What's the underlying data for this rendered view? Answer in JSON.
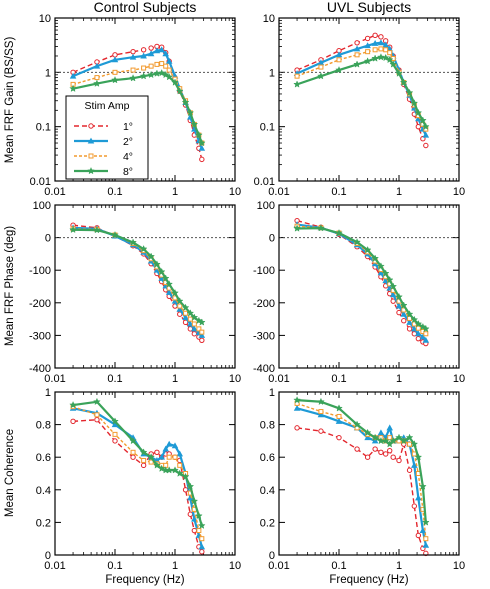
{
  "colors": {
    "1": "#e3262d",
    "2": "#1e9ad6",
    "4": "#f29a2e",
    "8": "#3aa35a",
    "reference": "#555555",
    "axis": "#000000"
  },
  "legend": {
    "title": "Stim Amp",
    "entries": [
      {
        "key": "1",
        "label": "1°"
      },
      {
        "key": "2",
        "label": "2°"
      },
      {
        "key": "4",
        "label": "4°"
      },
      {
        "key": "8",
        "label": "8°"
      }
    ]
  },
  "columns": [
    {
      "title": "Control Subjects"
    },
    {
      "title": "UVL Subjects"
    }
  ],
  "rows": [
    {
      "ylabel": "Mean FRF Gain (BS/SS)",
      "scale": "log",
      "ylim": [
        0.01,
        10
      ],
      "yticks": [
        "0.01",
        "0.1",
        "1",
        "10"
      ],
      "refline": 1
    },
    {
      "ylabel": "Mean FRF Phase (deg)",
      "scale": "linear",
      "ylim": [
        -400,
        100
      ],
      "yticks": [
        "-400",
        "-300",
        "-200",
        "-100",
        "0",
        "100"
      ],
      "refline": 0
    },
    {
      "ylabel": "Mean Coherence",
      "scale": "linear",
      "ylim": [
        0,
        1
      ],
      "yticks": [
        "0",
        "0.2",
        "0.4",
        "0.6",
        "0.8",
        "1"
      ],
      "refline": null
    }
  ],
  "xaxis": {
    "label": "Frequency (Hz)",
    "scale": "log",
    "xlim": [
      0.01,
      10
    ],
    "ticks": [
      "0.01",
      "0.1",
      "1",
      "10"
    ]
  },
  "chart_data": [
    {
      "type": "line",
      "panel": "control-gain",
      "title": "Control Subjects",
      "ylabel": "Mean FRF Gain (BS/SS)",
      "x": [
        0.02,
        0.05,
        0.1,
        0.2,
        0.3,
        0.4,
        0.5,
        0.6,
        0.7,
        0.8,
        1.0,
        1.2,
        1.5,
        1.8,
        2.1,
        2.5,
        2.8
      ],
      "series": [
        {
          "name": "1°",
          "key": "1",
          "values": [
            1.0,
            1.55,
            2.1,
            2.4,
            2.6,
            2.8,
            3.0,
            2.9,
            2.3,
            1.6,
            0.8,
            0.45,
            0.25,
            0.13,
            0.07,
            0.04,
            0.025
          ]
        },
        {
          "name": "2°",
          "key": "2",
          "values": [
            0.85,
            1.3,
            1.7,
            1.9,
            2.0,
            2.2,
            2.5,
            2.6,
            2.2,
            1.6,
            0.85,
            0.5,
            0.28,
            0.15,
            0.09,
            0.055,
            0.04
          ]
        },
        {
          "name": "4°",
          "key": "4",
          "values": [
            0.6,
            0.8,
            1.0,
            1.1,
            1.2,
            1.3,
            1.4,
            1.45,
            1.3,
            1.1,
            0.75,
            0.5,
            0.3,
            0.18,
            0.11,
            0.07,
            0.05
          ]
        },
        {
          "name": "8°",
          "key": "8",
          "values": [
            0.5,
            0.62,
            0.72,
            0.78,
            0.85,
            0.9,
            0.95,
            0.97,
            0.9,
            0.82,
            0.65,
            0.45,
            0.28,
            0.18,
            0.11,
            0.07,
            0.05
          ]
        }
      ]
    },
    {
      "type": "line",
      "panel": "uvl-gain",
      "title": "UVL Subjects",
      "x": [
        0.02,
        0.05,
        0.1,
        0.2,
        0.3,
        0.4,
        0.5,
        0.6,
        0.7,
        0.8,
        1.0,
        1.2,
        1.5,
        1.8,
        2.1,
        2.5,
        2.8
      ],
      "series": [
        {
          "name": "1°",
          "key": "1",
          "values": [
            1.1,
            1.7,
            2.5,
            3.5,
            4.2,
            4.8,
            4.5,
            3.8,
            2.9,
            2.0,
            1.1,
            0.6,
            0.32,
            0.17,
            0.1,
            0.06,
            0.045
          ]
        },
        {
          "name": "2°",
          "key": "2",
          "values": [
            0.95,
            1.5,
            2.1,
            2.7,
            3.1,
            3.4,
            3.5,
            3.2,
            2.7,
            2.0,
            1.1,
            0.65,
            0.38,
            0.22,
            0.14,
            0.09,
            0.07
          ]
        },
        {
          "name": "4°",
          "key": "4",
          "values": [
            0.85,
            1.25,
            1.7,
            2.1,
            2.4,
            2.6,
            2.7,
            2.6,
            2.3,
            1.8,
            1.0,
            0.65,
            0.4,
            0.25,
            0.16,
            0.11,
            0.09
          ]
        },
        {
          "name": "8°",
          "key": "8",
          "values": [
            0.6,
            0.85,
            1.1,
            1.4,
            1.6,
            1.8,
            1.9,
            1.85,
            1.7,
            1.4,
            0.95,
            0.65,
            0.42,
            0.27,
            0.18,
            0.13,
            0.1
          ]
        }
      ]
    },
    {
      "type": "line",
      "panel": "control-phase",
      "ylabel": "Mean FRF Phase (deg)",
      "x": [
        0.02,
        0.05,
        0.1,
        0.2,
        0.3,
        0.4,
        0.5,
        0.6,
        0.7,
        0.8,
        1.0,
        1.2,
        1.5,
        1.8,
        2.1,
        2.5,
        2.8
      ],
      "series": [
        {
          "name": "1°",
          "key": "1",
          "values": [
            38,
            30,
            5,
            -25,
            -50,
            -80,
            -110,
            -135,
            -160,
            -180,
            -210,
            -235,
            -260,
            -280,
            -295,
            -305,
            -315
          ]
        },
        {
          "name": "2°",
          "key": "2",
          "values": [
            30,
            27,
            5,
            -22,
            -45,
            -72,
            -100,
            -125,
            -148,
            -168,
            -195,
            -220,
            -245,
            -265,
            -280,
            -292,
            -300
          ]
        },
        {
          "name": "4°",
          "key": "4",
          "values": [
            27,
            25,
            8,
            -18,
            -40,
            -65,
            -90,
            -115,
            -138,
            -155,
            -185,
            -210,
            -232,
            -250,
            -265,
            -280,
            -290
          ]
        },
        {
          "name": "8°",
          "key": "8",
          "values": [
            24,
            23,
            8,
            -15,
            -35,
            -58,
            -82,
            -105,
            -125,
            -143,
            -170,
            -195,
            -215,
            -232,
            -245,
            -255,
            -260
          ]
        }
      ]
    },
    {
      "type": "line",
      "panel": "uvl-phase",
      "x": [
        0.02,
        0.05,
        0.1,
        0.2,
        0.3,
        0.4,
        0.5,
        0.6,
        0.7,
        0.8,
        1.0,
        1.2,
        1.5,
        1.8,
        2.1,
        2.5,
        2.8
      ],
      "series": [
        {
          "name": "1°",
          "key": "1",
          "values": [
            52,
            32,
            10,
            -28,
            -58,
            -90,
            -120,
            -148,
            -172,
            -195,
            -230,
            -255,
            -280,
            -295,
            -310,
            -320,
            -325
          ]
        },
        {
          "name": "2°",
          "key": "2",
          "values": [
            40,
            30,
            12,
            -22,
            -50,
            -80,
            -108,
            -132,
            -155,
            -175,
            -210,
            -235,
            -260,
            -280,
            -295,
            -305,
            -315
          ]
        },
        {
          "name": "4°",
          "key": "4",
          "values": [
            35,
            30,
            14,
            -18,
            -44,
            -72,
            -98,
            -120,
            -142,
            -162,
            -195,
            -222,
            -248,
            -265,
            -278,
            -288,
            -295
          ]
        },
        {
          "name": "8°",
          "key": "8",
          "values": [
            28,
            29,
            14,
            -14,
            -38,
            -64,
            -88,
            -110,
            -130,
            -150,
            -182,
            -208,
            -235,
            -252,
            -265,
            -274,
            -280
          ]
        }
      ]
    },
    {
      "type": "line",
      "panel": "control-coherence",
      "ylabel": "Mean Coherence",
      "xlabel": "Frequency (Hz)",
      "x": [
        0.02,
        0.05,
        0.1,
        0.2,
        0.3,
        0.4,
        0.5,
        0.6,
        0.7,
        0.8,
        1.0,
        1.2,
        1.5,
        1.8,
        2.1,
        2.5,
        2.8
      ],
      "series": [
        {
          "name": "1°",
          "key": "1",
          "values": [
            0.82,
            0.83,
            0.7,
            0.6,
            0.55,
            0.62,
            0.63,
            0.6,
            0.62,
            0.62,
            0.6,
            0.58,
            0.4,
            0.25,
            0.15,
            0.05,
            0.02
          ]
        },
        {
          "name": "2°",
          "key": "2",
          "values": [
            0.9,
            0.87,
            0.8,
            0.72,
            0.62,
            0.6,
            0.58,
            0.6,
            0.65,
            0.68,
            0.67,
            0.62,
            0.5,
            0.35,
            0.22,
            0.12,
            0.05
          ]
        },
        {
          "name": "4°",
          "key": "4",
          "values": [
            0.91,
            0.86,
            0.74,
            0.63,
            0.58,
            0.57,
            0.56,
            0.55,
            0.55,
            0.6,
            0.6,
            0.55,
            0.5,
            0.38,
            0.28,
            0.15,
            0.1
          ]
        },
        {
          "name": "8°",
          "key": "8",
          "values": [
            0.92,
            0.94,
            0.82,
            0.7,
            0.63,
            0.6,
            0.55,
            0.53,
            0.52,
            0.52,
            0.52,
            0.5,
            0.48,
            0.42,
            0.33,
            0.24,
            0.18
          ]
        }
      ]
    },
    {
      "type": "line",
      "panel": "uvl-coherence",
      "xlabel": "Frequency (Hz)",
      "x": [
        0.02,
        0.05,
        0.1,
        0.2,
        0.3,
        0.4,
        0.5,
        0.6,
        0.7,
        0.8,
        1.0,
        1.2,
        1.5,
        1.8,
        2.1,
        2.5,
        2.8
      ],
      "series": [
        {
          "name": "1°",
          "key": "1",
          "values": [
            0.78,
            0.76,
            0.72,
            0.65,
            0.6,
            0.65,
            0.63,
            0.62,
            0.64,
            0.6,
            0.58,
            0.68,
            0.52,
            0.3,
            0.12,
            0.04,
            0.01
          ]
        },
        {
          "name": "2°",
          "key": "2",
          "values": [
            0.9,
            0.86,
            0.82,
            0.78,
            0.72,
            0.7,
            0.75,
            0.72,
            0.78,
            0.7,
            0.7,
            0.72,
            0.68,
            0.55,
            0.35,
            0.15,
            0.06
          ]
        },
        {
          "name": "4°",
          "key": "4",
          "values": [
            0.93,
            0.88,
            0.85,
            0.78,
            0.74,
            0.72,
            0.72,
            0.7,
            0.72,
            0.7,
            0.7,
            0.7,
            0.68,
            0.62,
            0.5,
            0.28,
            0.1
          ]
        },
        {
          "name": "8°",
          "key": "8",
          "values": [
            0.95,
            0.94,
            0.9,
            0.8,
            0.75,
            0.72,
            0.7,
            0.7,
            0.68,
            0.7,
            0.72,
            0.7,
            0.72,
            0.68,
            0.6,
            0.42,
            0.2
          ]
        }
      ]
    }
  ]
}
